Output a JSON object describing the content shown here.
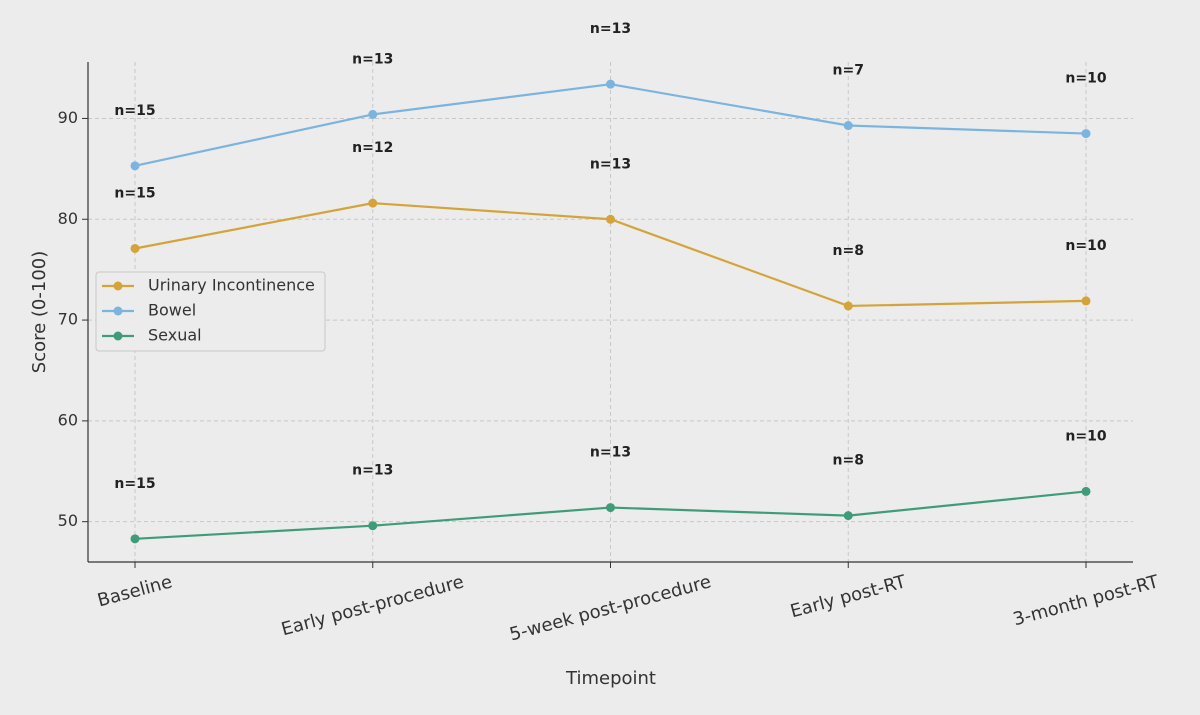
{
  "chart_data": {
    "type": "line",
    "x_label": "Timepoint",
    "y_label": "Score (0-100)",
    "categories": [
      "Baseline",
      "Early post-procedure",
      "5-week post-procedure",
      "Early post-RT",
      "3-month post-RT"
    ],
    "series": [
      {
        "name": "Urinary Incontinence",
        "color": "#d4a43a",
        "values": [
          77.1,
          81.6,
          80.0,
          71.4,
          71.9
        ],
        "annotations": [
          "n=15",
          "n=12",
          "n=13",
          "n=8",
          "n=10"
        ]
      },
      {
        "name": "Bowel",
        "color": "#7ab4df",
        "values": [
          85.3,
          90.4,
          93.4,
          89.3,
          88.5
        ],
        "annotations": [
          "n=15",
          "n=13",
          "n=13",
          "n=7",
          "n=10"
        ]
      },
      {
        "name": "Sexual",
        "color": "#3f9c78",
        "values": [
          48.3,
          49.6,
          51.4,
          50.6,
          53.0
        ],
        "annotations": [
          "n=15",
          "n=13",
          "n=13",
          "n=8",
          "n=10"
        ]
      }
    ],
    "ylim": [
      46.0,
      95.6
    ],
    "yticks": [
      50,
      60,
      70,
      80,
      90
    ],
    "grid": true,
    "legend": "left"
  }
}
